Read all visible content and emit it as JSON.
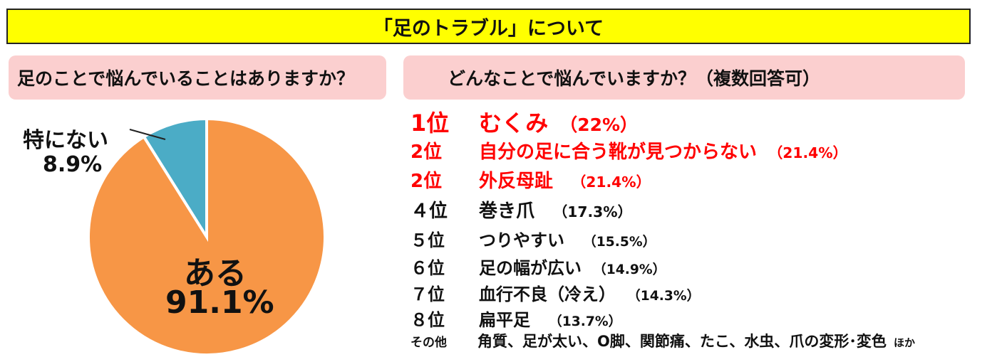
{
  "title": "「足のトラブル」について",
  "left": {
    "question": "足のことで悩んでいることはありますか？",
    "chart_label_none": "特にない",
    "chart_label_none_pct": "8.9%",
    "chart_label_yes": "ある",
    "chart_label_yes_pct": "91.1%"
  },
  "right": {
    "question": "どんなことで悩んでいますか？（複数回答可）",
    "rankings": [
      {
        "rank": "1位",
        "item": "むくみ",
        "pct": "（22%）"
      },
      {
        "rank": "2位",
        "item": "自分の足に合う靴が見つからない",
        "pct": "（21.4%）"
      },
      {
        "rank": "2位",
        "item": "外反母趾",
        "pct": "（21.4%）"
      },
      {
        "rank": "４位",
        "item": "巻き爪",
        "pct": "（17.3%）"
      },
      {
        "rank": "５位",
        "item": "つりやすい",
        "pct": "（15.5%）"
      },
      {
        "rank": "６位",
        "item": "足の幅が広い",
        "pct": "（14.9%）"
      },
      {
        "rank": "７位",
        "item": "血行不良（冷え）",
        "pct": "（14.3%）"
      },
      {
        "rank": "８位",
        "item": "扁平足",
        "pct": "（13.7%）"
      }
    ],
    "other_label": "その他",
    "other_items": "角質、足が太い、O脚、関節痛、たこ、水虫、爪の変形･変色",
    "other_suffix": "ほか"
  },
  "chart_data": [
    {
      "type": "pie",
      "categories": [
        "ある",
        "特にない"
      ],
      "values": [
        91.1,
        8.9
      ],
      "colors": [
        "#f79646",
        "#4bacc6"
      ]
    },
    {
      "type": "table",
      "columns": [
        "rank",
        "item",
        "pct"
      ],
      "rows": [
        [
          "1位",
          "むくみ",
          "22%"
        ],
        [
          "2位",
          "自分の足に合う靴が見つからない",
          "21.4%"
        ],
        [
          "2位",
          "外反母趾",
          "21.4%"
        ],
        [
          "４位",
          "巻き爪",
          "17.3%"
        ],
        [
          "５位",
          "つりやすい",
          "15.5%"
        ],
        [
          "６位",
          "足の幅が広い",
          "14.9%"
        ],
        [
          "７位",
          "血行不良（冷え）",
          "14.3%"
        ],
        [
          "８位",
          "扁平足",
          "13.7%"
        ]
      ]
    }
  ],
  "colors": {
    "title_bg": "#ffff00",
    "question_bg": "#fbcfcf",
    "highlight_text": "#ff0000"
  }
}
